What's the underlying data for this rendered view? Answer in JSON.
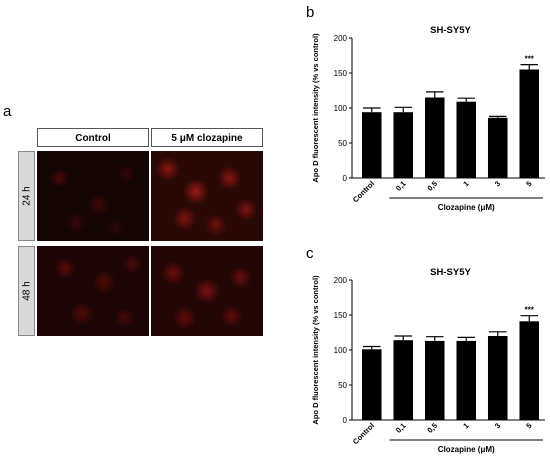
{
  "panel_a": {
    "letter": "a",
    "columns": [
      "Control",
      "5 μM clozapine"
    ],
    "rows": [
      "24 h",
      "48 h"
    ]
  },
  "chart_data": [
    {
      "panel": "b",
      "type": "bar",
      "title": "SH-SY5Y",
      "ylabel": "Apo D fluorescent intensity (% vs control)",
      "xlabel": "Clozapine (μM)",
      "categories": [
        "Control",
        "0,1",
        "0,5",
        "1",
        "3",
        "5"
      ],
      "values": [
        94,
        94,
        115,
        109,
        86,
        155
      ],
      "errors": [
        6,
        7,
        8,
        5,
        2,
        7
      ],
      "annotations": [
        {
          "category": "5",
          "text": "***"
        }
      ],
      "ylim": [
        0,
        200
      ],
      "yticks": [
        0,
        50,
        100,
        150,
        200
      ],
      "bar_color": "#000000"
    },
    {
      "panel": "c",
      "type": "bar",
      "title": "SH-SY5Y",
      "ylabel": "Apo D fluorescent intensity (% vs control)",
      "xlabel": "Clozapine (μM)",
      "categories": [
        "Control",
        "0,1",
        "0,5",
        "1",
        "3",
        "5"
      ],
      "values": [
        101,
        114,
        113,
        113,
        120,
        141
      ],
      "errors": [
        4,
        6,
        6,
        5,
        6,
        8
      ],
      "annotations": [
        {
          "category": "5",
          "text": "***"
        }
      ],
      "ylim": [
        0,
        200
      ],
      "yticks": [
        0,
        50,
        100,
        150,
        200
      ],
      "bar_color": "#000000"
    }
  ]
}
